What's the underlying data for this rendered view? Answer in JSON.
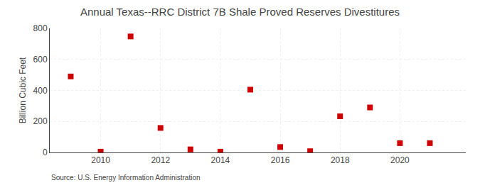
{
  "chart_data": {
    "type": "scatter",
    "title": "Annual Texas--RRC District 7B Shale Proved Reserves Divestitures",
    "ylabel": "Billion Cubic Feet",
    "annotations": [
      "Source: U.S. Energy Information Administration"
    ],
    "x": [
      2009,
      2010,
      2011,
      2012,
      2013,
      2014,
      2015,
      2016,
      2017,
      2018,
      2019,
      2020,
      2021
    ],
    "values": [
      490,
      5,
      748,
      158,
      20,
      5,
      405,
      35,
      8,
      233,
      290,
      60,
      60
    ],
    "color": "#cc0000",
    "marker": "square",
    "xlim": [
      2008.3,
      2022.2
    ],
    "xticks": [
      2010,
      2012,
      2014,
      2016,
      2018,
      2020
    ],
    "ylim": [
      0,
      800
    ],
    "yticks": [
      0,
      200,
      400,
      600,
      800
    ],
    "grid": true
  }
}
